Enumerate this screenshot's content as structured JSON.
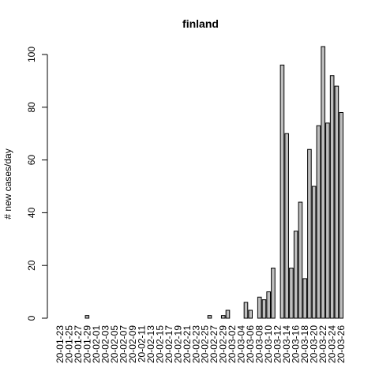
{
  "chart_data": {
    "type": "bar",
    "title": "finland",
    "y_label": "# new cases/day",
    "categories": [
      "20-01-23",
      null,
      "20-01-25",
      null,
      "20-01-27",
      null,
      "20-01-29",
      null,
      "20-02-01",
      null,
      "20-02-03",
      null,
      "20-02-05",
      null,
      "20-02-07",
      null,
      "20-02-09",
      null,
      "20-02-11",
      null,
      "20-02-13",
      null,
      "20-02-15",
      null,
      "20-02-17",
      null,
      "20-02-19",
      null,
      "20-02-21",
      null,
      "20-02-23",
      null,
      "20-02-25",
      null,
      "20-02-27",
      null,
      "20-02-29",
      null,
      "20-03-02",
      null,
      "20-03-04",
      null,
      "20-03-06",
      null,
      "20-03-08",
      null,
      "20-03-10",
      null,
      "20-03-12",
      null,
      "20-03-14",
      null,
      "20-03-16",
      null,
      "20-03-18",
      null,
      "20-03-20",
      null,
      "20-03-22",
      null,
      "20-03-24",
      null,
      "20-03-26"
    ],
    "values": [
      0,
      0,
      0,
      0,
      0,
      0,
      1,
      0,
      0,
      0,
      0,
      0,
      0,
      0,
      0,
      0,
      0,
      0,
      0,
      0,
      0,
      0,
      0,
      0,
      0,
      0,
      0,
      0,
      0,
      0,
      0,
      0,
      0,
      1,
      0,
      0,
      1,
      3,
      0,
      0,
      0,
      6,
      3,
      0,
      8,
      7,
      10,
      19,
      0,
      96,
      70,
      19,
      33,
      44,
      15,
      64,
      50,
      73,
      103,
      74,
      92,
      88,
      78
    ],
    "color": "#bebebe",
    "ylim": [
      0,
      103
    ],
    "yticks": [
      0,
      20,
      40,
      60,
      80,
      100
    ]
  }
}
